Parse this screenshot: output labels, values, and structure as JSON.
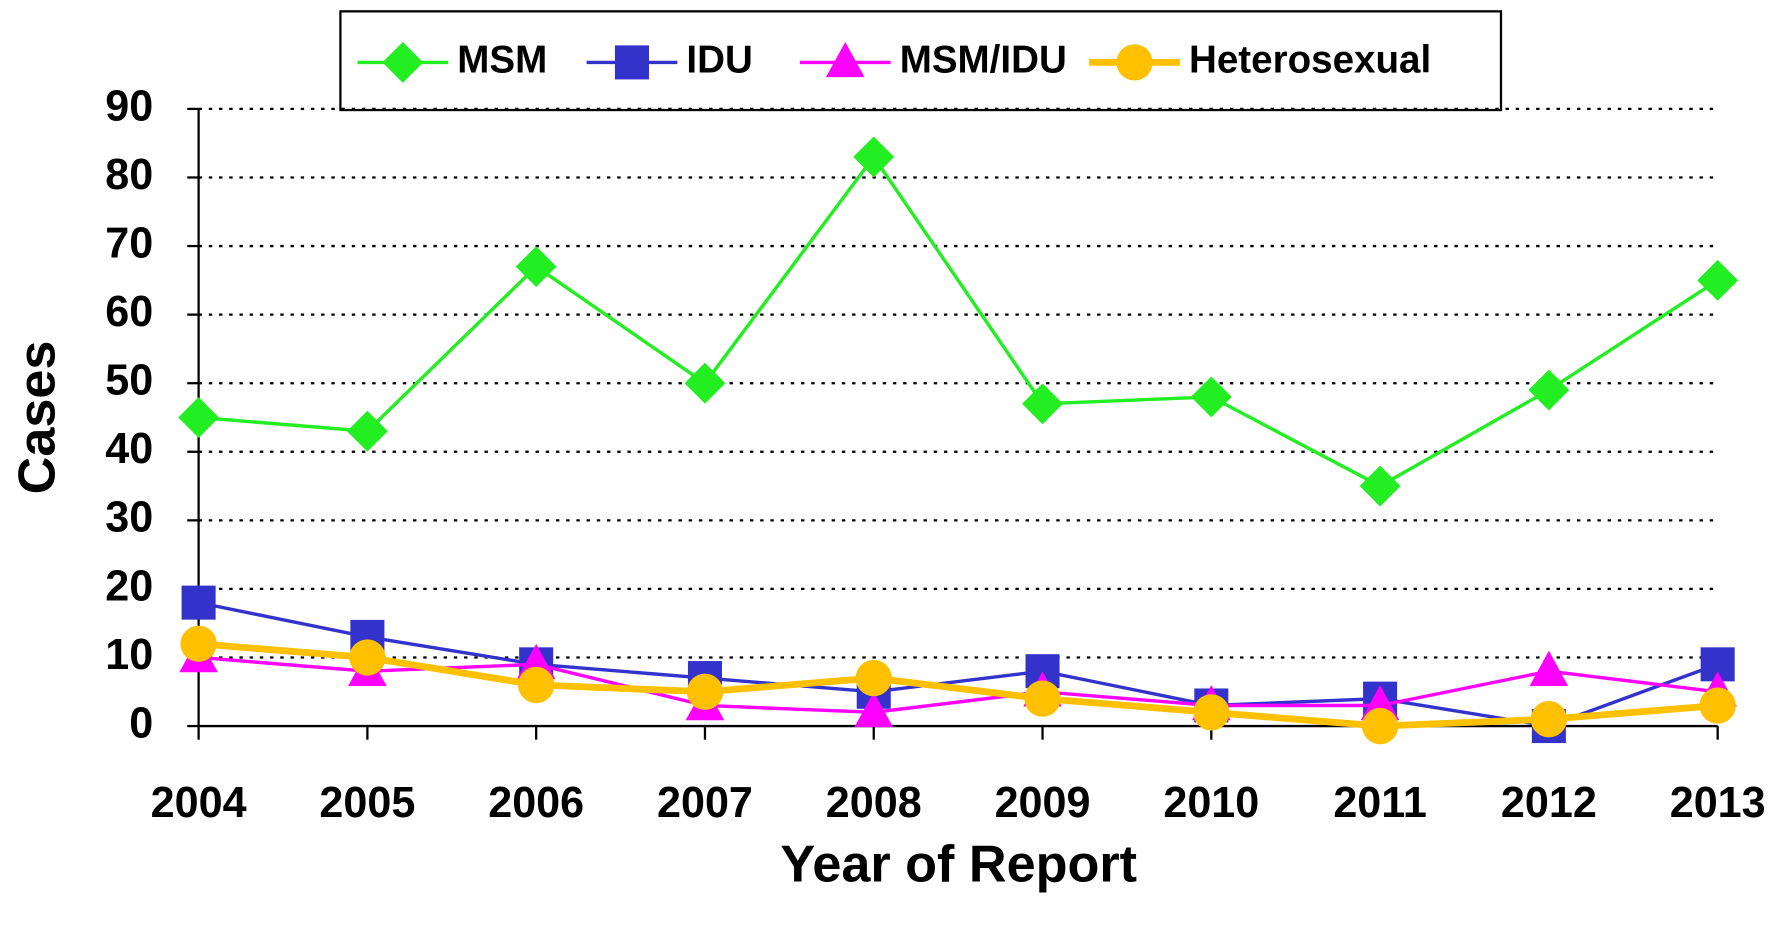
{
  "chart_data": {
    "type": "line",
    "x_label": "Year of Report",
    "y_label": "Cases",
    "categories": [
      "2004",
      "2005",
      "2006",
      "2007",
      "2008",
      "2009",
      "2010",
      "2011",
      "2012",
      "2013"
    ],
    "series": [
      {
        "name": "MSM",
        "color": "#22ee22",
        "marker": "diamond",
        "values": [
          45,
          43,
          67,
          50,
          83,
          47,
          48,
          35,
          49,
          65
        ]
      },
      {
        "name": "IDU",
        "color": "#3333cc",
        "marker": "square",
        "values": [
          18,
          13,
          9,
          7,
          5,
          8,
          3,
          4,
          0,
          9
        ]
      },
      {
        "name": "MSM/IDU",
        "color": "#ff00ff",
        "marker": "triangle",
        "values": [
          10,
          8,
          9,
          3,
          2,
          5,
          3,
          3,
          8,
          5
        ]
      },
      {
        "name": "Heterosexual",
        "color": "#ffc000",
        "marker": "circle",
        "values": [
          12,
          10,
          6,
          5,
          7,
          4,
          2,
          0,
          1,
          3
        ]
      }
    ],
    "ylim": [
      0,
      90
    ],
    "yticks": [
      0,
      10,
      20,
      30,
      40,
      50,
      60,
      70,
      80,
      90
    ],
    "grid": true,
    "legend": "top"
  }
}
